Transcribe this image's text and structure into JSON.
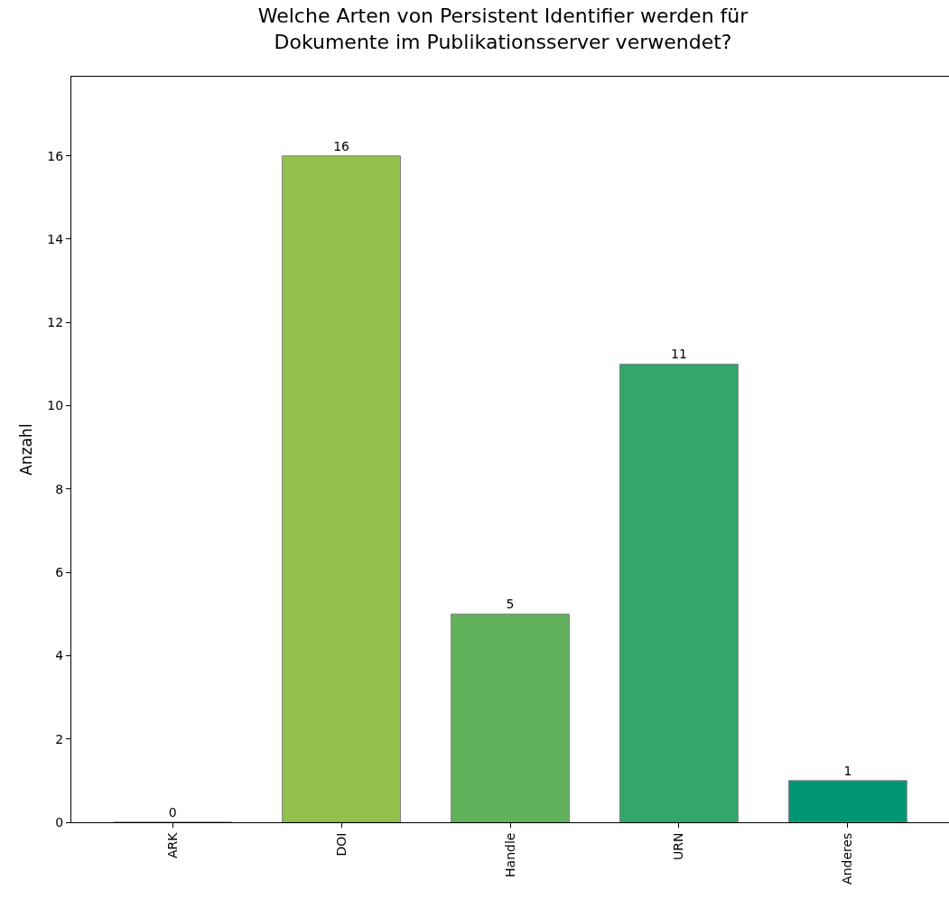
{
  "chart_data": {
    "type": "bar",
    "title": "Welche Arten von Persistent Identifier werden für\nDokumente im Publikationsserver verwendet?",
    "ylabel": "Anzahl",
    "categories": [
      "ARK",
      "DOI",
      "Handle",
      "URN",
      "Anderes"
    ],
    "values": [
      0,
      16,
      5,
      11,
      1
    ],
    "colors": [
      "#808080",
      "#92c24c",
      "#62b25c",
      "#33a669",
      "#009673"
    ],
    "ylim": [
      0,
      17.9
    ],
    "yticks": [
      0,
      2,
      4,
      6,
      8,
      10,
      12,
      14,
      16
    ],
    "data_labels": true,
    "grid": false
  }
}
